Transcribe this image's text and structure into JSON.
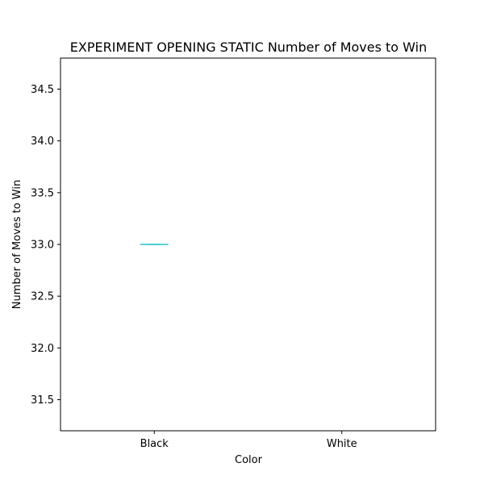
{
  "chart_data": {
    "type": "box",
    "title": "EXPERIMENT OPENING STATIC Number of Moves to Win",
    "xlabel": "Color",
    "ylabel": "Number of Moves to Win",
    "categories": [
      "Black",
      "White"
    ],
    "ylim": [
      31.2,
      34.8
    ],
    "yticks": [
      31.5,
      32.0,
      32.5,
      33.0,
      33.5,
      34.0,
      34.5
    ],
    "ytick_labels": [
      "31.5",
      "32.0",
      "32.5",
      "33.0",
      "33.5",
      "34.0",
      "34.5"
    ],
    "boxes": [
      {
        "category": "Black",
        "min": 33,
        "q1": 33,
        "median": 33,
        "q3": 33,
        "max": 33
      }
    ],
    "grid": false,
    "colors": {
      "box": "#1f77b4",
      "median": "#2ec4c4",
      "whisker": "#2ec4c4"
    }
  }
}
